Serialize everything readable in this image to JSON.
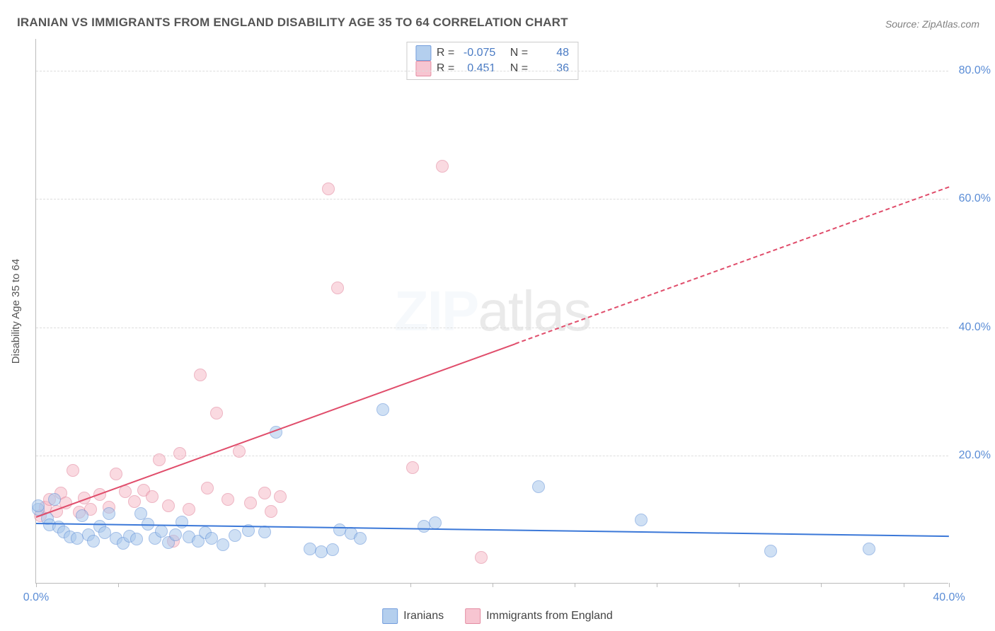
{
  "title": "IRANIAN VS IMMIGRANTS FROM ENGLAND DISABILITY AGE 35 TO 64 CORRELATION CHART",
  "source": "Source: ZipAtlas.com",
  "y_axis_label": "Disability Age 35 to 64",
  "watermark_bold": "ZIP",
  "watermark_light": "atlas",
  "chart": {
    "type": "scatter",
    "xlim": [
      0,
      40
    ],
    "ylim": [
      0,
      85
    ],
    "x_ticks": [
      0,
      3.6,
      10,
      16.4,
      20,
      23.6,
      27.2,
      30.8,
      34.4,
      38,
      40
    ],
    "x_tick_labels": {
      "0": "0.0%",
      "40": "40.0%"
    },
    "y_ticks": [
      20,
      40,
      60,
      80
    ],
    "y_tick_labels": {
      "20": "20.0%",
      "40": "40.0%",
      "60": "60.0%",
      "80": "80.0%"
    },
    "background_color": "#ffffff",
    "grid_color": "#dddddd",
    "axis_color": "#bbbbbb",
    "label_color": "#5b8dd6"
  },
  "series": {
    "iranians": {
      "label": "Iranians",
      "fill": "#a8c7ec",
      "stroke": "#5b8dd6",
      "fill_opacity": 0.55,
      "marker_r": 9,
      "trend": {
        "x1": 0,
        "y1": 9.5,
        "x2": 40,
        "y2": 7.5,
        "color": "#3b78d8",
        "width": 2.5,
        "solid_to_x": 40
      },
      "stats": {
        "R": "-0.075",
        "N": "48"
      },
      "points": [
        [
          0.1,
          11.5
        ],
        [
          0.1,
          12.0
        ],
        [
          0.5,
          10
        ],
        [
          0.6,
          9
        ],
        [
          0.8,
          13
        ],
        [
          1.0,
          8.7
        ],
        [
          1.2,
          8
        ],
        [
          1.5,
          7.2
        ],
        [
          1.8,
          7.0
        ],
        [
          2.0,
          10.5
        ],
        [
          2.3,
          7.5
        ],
        [
          2.5,
          6.5
        ],
        [
          2.8,
          8.8
        ],
        [
          3.0,
          7.8
        ],
        [
          3.2,
          10.8
        ],
        [
          3.5,
          7.0
        ],
        [
          3.8,
          6.2
        ],
        [
          4.1,
          7.3
        ],
        [
          4.4,
          6.8
        ],
        [
          4.6,
          10.8
        ],
        [
          4.9,
          9.2
        ],
        [
          5.2,
          7.0
        ],
        [
          5.5,
          8.1
        ],
        [
          5.8,
          6.3
        ],
        [
          6.1,
          7.5
        ],
        [
          6.4,
          9.5
        ],
        [
          6.7,
          7.2
        ],
        [
          7.1,
          6.5
        ],
        [
          7.4,
          7.8
        ],
        [
          7.7,
          7.0
        ],
        [
          8.2,
          6.0
        ],
        [
          8.7,
          7.4
        ],
        [
          9.3,
          8.2
        ],
        [
          10.0,
          8.0
        ],
        [
          10.5,
          23.5
        ],
        [
          12.0,
          5.3
        ],
        [
          12.5,
          4.9
        ],
        [
          13.3,
          8.3
        ],
        [
          13.8,
          7.7
        ],
        [
          14.2,
          7.0
        ],
        [
          15.2,
          27.0
        ],
        [
          17.0,
          8.8
        ],
        [
          17.5,
          9.4
        ],
        [
          22.0,
          15.0
        ],
        [
          26.5,
          9.8
        ],
        [
          32.2,
          5.0
        ],
        [
          36.5,
          5.3
        ],
        [
          13.0,
          5.2
        ]
      ]
    },
    "england": {
      "label": "Immigrants from England",
      "fill": "#f6bcc9",
      "stroke": "#e07a93",
      "fill_opacity": 0.55,
      "marker_r": 9,
      "trend": {
        "x1": 0,
        "y1": 10.5,
        "x2": 40,
        "y2": 62,
        "color": "#e04d6b",
        "width": 2,
        "solid_to_x": 21
      },
      "stats": {
        "R": "0.451",
        "N": "36"
      },
      "points": [
        [
          0.2,
          10.5
        ],
        [
          0.4,
          11.8
        ],
        [
          0.6,
          13
        ],
        [
          0.9,
          11.2
        ],
        [
          1.1,
          14
        ],
        [
          1.3,
          12.5
        ],
        [
          1.6,
          17.5
        ],
        [
          1.9,
          11
        ],
        [
          2.1,
          13.2
        ],
        [
          2.4,
          11.5
        ],
        [
          2.8,
          13.8
        ],
        [
          3.2,
          11.8
        ],
        [
          3.5,
          17
        ],
        [
          3.9,
          14.2
        ],
        [
          4.3,
          12.7
        ],
        [
          4.7,
          14.5
        ],
        [
          5.1,
          13.5
        ],
        [
          5.4,
          19.2
        ],
        [
          5.8,
          12
        ],
        [
          6.3,
          20.2
        ],
        [
          6.7,
          11.5
        ],
        [
          7.2,
          32.5
        ],
        [
          7.5,
          14.8
        ],
        [
          7.9,
          26.5
        ],
        [
          8.4,
          13
        ],
        [
          8.9,
          20.5
        ],
        [
          9.4,
          12.5
        ],
        [
          10.0,
          14
        ],
        [
          10.3,
          11.2
        ],
        [
          10.7,
          13.5
        ],
        [
          12.8,
          61.5
        ],
        [
          13.2,
          46.0
        ],
        [
          16.5,
          18
        ],
        [
          17.8,
          65.0
        ],
        [
          19.5,
          4.0
        ],
        [
          6.0,
          6.5
        ]
      ]
    }
  },
  "legend_labels": {
    "R": "R =",
    "N": "N ="
  }
}
